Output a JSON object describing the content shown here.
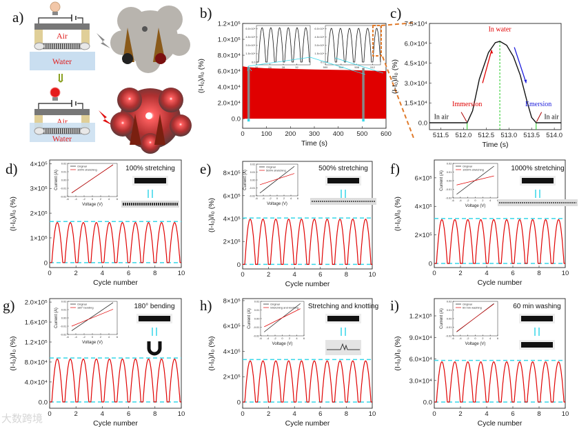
{
  "figure": {
    "watermark": "大数跨境"
  },
  "colors": {
    "red": "#e00000",
    "cyan": "#35d6e8",
    "black": "#111111",
    "blue": "#1a1adb",
    "green": "#22cc22",
    "orange": "#e07a2a",
    "water": "#c9def0",
    "air_text": "#e02020"
  },
  "panel_a": {
    "label": "a)",
    "top": {
      "air": "Air",
      "water": "Water",
      "bulb": "off"
    },
    "bottom": {
      "air": "Air",
      "water": "Water",
      "bulb": "on"
    }
  },
  "chart_data": [
    {
      "id": "b",
      "label": "b)",
      "type": "area",
      "xlabel": "Time (s)",
      "ylabel": "(I-I₀)/I₀ (%)",
      "xlim": [
        0,
        600
      ],
      "ylim": [
        -12000,
        120000
      ],
      "xticks": [
        0,
        100,
        200,
        300,
        400,
        500,
        600
      ],
      "xtick_labels": [
        "0",
        "100",
        "200",
        "300",
        "400",
        "500",
        "600"
      ],
      "yticks": [
        0,
        20000,
        40000,
        60000,
        80000,
        100000,
        120000
      ],
      "ytick_labels": [
        "0.0",
        "2.0×10⁴",
        "4.0×10⁴",
        "6.0×10⁴",
        "8.0×10⁴",
        "1.0×10⁵",
        "1.2×10⁵"
      ],
      "envelope": {
        "x": [
          0,
          20,
          100,
          300,
          500,
          600
        ],
        "y": [
          66000,
          65000,
          63500,
          62000,
          61000,
          60000
        ]
      },
      "highlight_ranges": [
        [
          20,
          30
        ],
        [
          500,
          510
        ]
      ],
      "insets": [
        {
          "xlim": [
            20,
            36
          ],
          "ylim": [
            -5000,
            66000
          ],
          "xticks": [
            20,
            24,
            28,
            32
          ],
          "xtick_labels": [
            "20",
            "24",
            "28",
            "32"
          ],
          "yticks": [
            0,
            15000,
            30000,
            45000,
            60000
          ],
          "ytick_labels": [
            "0.0",
            "1.5×10⁴",
            "3.0×10⁴",
            "4.5×10⁴",
            "6.0×10⁴"
          ],
          "start": 20.3,
          "period": 2.6,
          "cycles": 6,
          "peak": 62000
        },
        {
          "xlim": [
            500,
            514
          ],
          "ylim": [
            -5000,
            66000
          ],
          "xticks": [
            500,
            504,
            508,
            512
          ],
          "xtick_labels": [
            "500",
            "504",
            "508",
            "512"
          ],
          "yticks": [
            0,
            15000,
            30000,
            45000,
            60000
          ],
          "ytick_labels": [
            "0.0",
            "1.5×10⁴",
            "3.0×10⁴",
            "4.5×10⁴",
            "6.0×10⁴"
          ],
          "start": 500.3,
          "period": 2.3,
          "cycles": 6,
          "peak": 61000
        }
      ]
    },
    {
      "id": "c",
      "label": "c)",
      "type": "line",
      "xlabel": "Time (s)",
      "ylabel": "(I-I₀)/I₀ (%)",
      "xlim": [
        511.25,
        514.15
      ],
      "ylim": [
        -5200,
        75000
      ],
      "xticks": [
        511.5,
        512.0,
        512.5,
        513.0,
        513.5,
        514.0
      ],
      "xtick_labels": [
        "511.5",
        "512.0",
        "512.5",
        "513.0",
        "513.5",
        "514.0"
      ],
      "yticks": [
        0,
        15000,
        30000,
        45000,
        60000,
        75000
      ],
      "ytick_labels": [
        "0.0",
        "1.5×10⁴",
        "3.0×10⁴",
        "4.5×10⁴",
        "6.0×10⁴",
        "7.5×10⁴"
      ],
      "series": [
        {
          "name": "response",
          "x": [
            511.25,
            512.08,
            512.2,
            512.35,
            512.55,
            512.7,
            512.8,
            512.95,
            513.1,
            513.25,
            513.4,
            513.5,
            513.6,
            514.15
          ],
          "y": [
            0,
            0,
            9000,
            33000,
            53000,
            60500,
            61500,
            58500,
            50000,
            36000,
            16000,
            4000,
            0,
            0
          ]
        }
      ],
      "vlines": [
        {
          "x": 512.08,
          "color": "green"
        },
        {
          "x": 512.8,
          "color": "green"
        },
        {
          "x": 513.6,
          "color": "green"
        }
      ],
      "annotations": {
        "in_water": "In water",
        "immersion": "Immersion",
        "emersion": "Emersion",
        "in_air_left": "In air",
        "in_air_right": "In air"
      }
    },
    {
      "id": "d",
      "label": "d)",
      "type": "line",
      "xlabel": "Cycle number",
      "ylabel": "(I-I₀)/I₀ (%)",
      "xlim": [
        0,
        10
      ],
      "ylim": [
        -20000,
        415000
      ],
      "xticks": [
        0,
        2,
        4,
        6,
        8,
        10
      ],
      "xtick_labels": [
        "0",
        "2",
        "4",
        "6",
        "8",
        "10"
      ],
      "yticks": [
        0,
        100000,
        200000,
        300000,
        400000
      ],
      "ytick_labels": [
        "0",
        "1×10⁵",
        "2×10⁵",
        "3×10⁵",
        "4×10⁵"
      ],
      "cycles": 10,
      "peak": 162000,
      "ref_lines": [
        0,
        166000
      ],
      "condition": "100% stretching",
      "inset": {
        "xlabel": "Voltage (V)",
        "ylabel": "Current (A)",
        "legend": [
          "Original",
          "100% stretching"
        ],
        "original": [
          -0.0157,
          0.0185
        ],
        "modified": [
          -0.0155,
          0.0183
        ]
      }
    },
    {
      "id": "e",
      "label": "e)",
      "type": "line",
      "xlabel": "Cycle number",
      "ylabel": "(I-I₀)/I₀ (%)",
      "xlim": [
        0,
        10
      ],
      "ylim": [
        -40000,
        900000
      ],
      "xticks": [
        0,
        2,
        4,
        6,
        8,
        10
      ],
      "xtick_labels": [
        "0",
        "2",
        "4",
        "6",
        "8",
        "10"
      ],
      "yticks": [
        0,
        200000,
        400000,
        600000,
        800000
      ],
      "ytick_labels": [
        "0",
        "2×10⁵",
        "4×10⁵",
        "6×10⁵",
        "8×10⁵"
      ],
      "cycles": 10,
      "peak": 395000,
      "ref_lines": [
        0,
        405000
      ],
      "condition": "500% stretching",
      "inset": {
        "xlabel": "Voltage (V)",
        "ylabel": "Current (A)",
        "legend": [
          "Original",
          "500% stretching"
        ],
        "original": [
          -0.0165,
          0.0172
        ],
        "modified": [
          -0.006,
          0.0082
        ]
      }
    },
    {
      "id": "f",
      "label": "f)",
      "type": "line",
      "xlabel": "Cycle number",
      "ylabel": "(I-I₀)/I₀ (%)",
      "xlim": [
        0,
        10
      ],
      "ylim": [
        -29000,
        725000
      ],
      "xticks": [
        0,
        2,
        4,
        6,
        8,
        10
      ],
      "xtick_labels": [
        "0",
        "2",
        "4",
        "6",
        "8",
        "10"
      ],
      "yticks": [
        0,
        200000,
        400000,
        600000
      ],
      "ytick_labels": [
        "0",
        "2×10⁵",
        "4×10⁵",
        "6×10⁵"
      ],
      "cycles": 10,
      "peak": 307000,
      "ref_lines": [
        0,
        315000
      ],
      "condition": "1000% stretching",
      "inset": {
        "xlabel": "Voltage (V)",
        "ylabel": "Current (A)",
        "legend": [
          "Original",
          "1000% stretching"
        ],
        "original": [
          -0.0158,
          0.0168
        ],
        "modified": [
          -0.005,
          0.0055
        ]
      }
    },
    {
      "id": "g",
      "label": "g)",
      "type": "line",
      "xlabel": "Cycle number",
      "ylabel": "(I-I₀)/I₀ (%)",
      "xlim": [
        0,
        10
      ],
      "ylim": [
        -12600,
        207000
      ],
      "xticks": [
        0,
        2,
        4,
        6,
        8,
        10
      ],
      "xtick_labels": [
        "0",
        "2",
        "4",
        "6",
        "8",
        "10"
      ],
      "yticks": [
        0,
        40000,
        80000,
        120000,
        160000,
        200000
      ],
      "ytick_labels": [
        "0.0",
        "4.0×10⁴",
        "8.0×10⁴",
        "1.2×10⁵",
        "1.6×10⁵",
        "2.0×10⁵"
      ],
      "cycles": 10,
      "peak": 86000,
      "ref_lines": [
        0,
        88000
      ],
      "condition": "180° bending",
      "inset": {
        "xlabel": "Voltage (V)",
        "ylabel": "Current (A)",
        "legend": [
          "Original",
          "180° bending"
        ],
        "original": [
          -0.0155,
          0.0185
        ],
        "modified": [
          -0.01,
          0.0105
        ]
      }
    },
    {
      "id": "h",
      "label": "h)",
      "type": "line",
      "xlabel": "Cycle number",
      "ylabel": "(I-I₀)/I₀ (%)",
      "xlim": [
        0,
        10
      ],
      "ylim": [
        -49000,
        816000
      ],
      "xticks": [
        0,
        2,
        4,
        6,
        8,
        10
      ],
      "xtick_labels": [
        "0",
        "2",
        "4",
        "6",
        "8",
        "10"
      ],
      "yticks": [
        0,
        200000,
        400000,
        600000,
        800000
      ],
      "ytick_labels": [
        "0",
        "2×10⁵",
        "4×10⁵",
        "6×10⁵",
        "8×10⁵"
      ],
      "cycles": 10,
      "peak": 325000,
      "ref_lines": [
        0,
        335000
      ],
      "condition": "Stretching and knotting",
      "inset": {
        "xlabel": "Voltage (V)",
        "ylabel": "Current (A)",
        "legend": [
          "Original",
          "Stretching and knotting"
        ],
        "original": [
          -0.0155,
          0.0175
        ],
        "modified": [
          -0.0095,
          0.0115
        ]
      }
    },
    {
      "id": "i",
      "label": "i)",
      "type": "line",
      "xlabel": "Cycle number",
      "ylabel": "(I-I₀)/I₀ (%)",
      "xlim": [
        0,
        10
      ],
      "ylim": [
        -8600,
        144000
      ],
      "xticks": [
        0,
        2,
        4,
        6,
        8,
        10
      ],
      "xtick_labels": [
        "0",
        "2",
        "4",
        "6",
        "8",
        "10"
      ],
      "yticks": [
        0,
        30000,
        60000,
        90000,
        120000
      ],
      "ytick_labels": [
        "0.0",
        "3.0×10⁴",
        "6.0×10⁴",
        "9.0×10⁴",
        "1.2×10⁵"
      ],
      "cycles": 10,
      "peak": 56000,
      "ref_lines": [
        0,
        58000
      ],
      "condition": "60 min washing",
      "inset": {
        "xlabel": "Voltage (V)",
        "ylabel": "Current (A)",
        "legend": [
          "Original",
          "60 min washing"
        ],
        "original": [
          -0.0155,
          0.0175
        ],
        "modified": [
          -0.015,
          0.017
        ]
      }
    }
  ],
  "iv_axes": {
    "xlim": [
      -6,
      6
    ],
    "ylim": [
      -0.02,
      0.02
    ],
    "xticks": [
      -6,
      -4,
      -2,
      0,
      2,
      4,
      6
    ],
    "xtick_labels": [
      "-6",
      "-4",
      "-2",
      "0",
      "2",
      "4",
      "6"
    ],
    "yticks": [
      -0.02,
      -0.01,
      0,
      0.01,
      0.02
    ],
    "ytick_labels": [
      "-0.02",
      "-0.01",
      "0.00",
      "0.01",
      "0.02"
    ]
  }
}
